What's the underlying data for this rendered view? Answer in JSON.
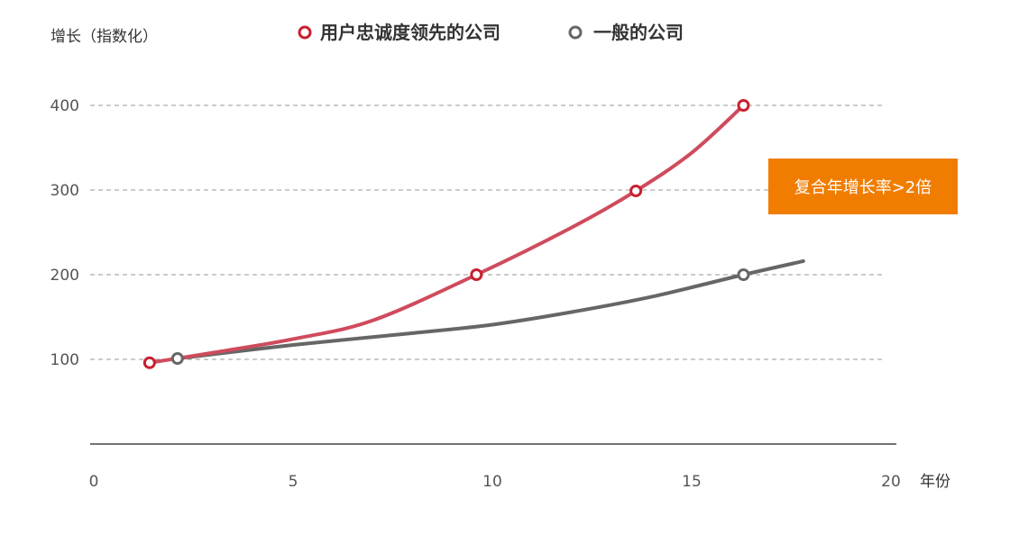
{
  "chart_data": {
    "type": "line",
    "ylabel": "增长（指数化）",
    "xlabel": "年份",
    "xlim": [
      0,
      20
    ],
    "ylim": [
      0,
      400
    ],
    "xticks": [
      0,
      5,
      10,
      15,
      20
    ],
    "yticks": [
      100,
      200,
      300,
      400
    ],
    "grid": true,
    "legend_position": "top",
    "series": [
      {
        "name": "用户忠诚度领先的公司",
        "color": "#cf4b5c",
        "marker_color": "#c8202f",
        "curve": [
          [
            1.4,
            96
          ],
          [
            3,
            108
          ],
          [
            5,
            124
          ],
          [
            7,
            146
          ],
          [
            9.6,
            200
          ],
          [
            12,
            256
          ],
          [
            13.6,
            299
          ],
          [
            15,
            344
          ],
          [
            16.3,
            400
          ]
        ],
        "markers": [
          [
            1.4,
            96
          ],
          [
            9.6,
            200
          ],
          [
            13.6,
            299
          ],
          [
            16.3,
            400
          ]
        ]
      },
      {
        "name": "一般的公司",
        "color": "#666666",
        "marker_color": "#666666",
        "curve": [
          [
            2.1,
            101
          ],
          [
            5,
            117
          ],
          [
            8,
            131
          ],
          [
            10,
            141
          ],
          [
            12,
            156
          ],
          [
            14,
            174
          ],
          [
            16.3,
            200
          ],
          [
            17.8,
            216
          ]
        ],
        "markers": [
          [
            2.1,
            101
          ],
          [
            16.3,
            200
          ]
        ]
      }
    ],
    "annotations": [
      {
        "text": "复合年增长率>2倍",
        "color": "#f07d00"
      }
    ]
  }
}
